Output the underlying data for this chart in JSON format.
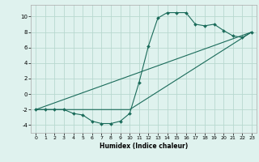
{
  "title": "",
  "xlabel": "Humidex (Indice chaleur)",
  "ylabel": "",
  "bg_color": "#dff2ee",
  "grid_color": "#b8d8d0",
  "line_color": "#1a6b5a",
  "xlim": [
    -0.5,
    23.5
  ],
  "ylim": [
    -5,
    11.5
  ],
  "xticks": [
    0,
    1,
    2,
    3,
    4,
    5,
    6,
    7,
    8,
    9,
    10,
    11,
    12,
    13,
    14,
    15,
    16,
    17,
    18,
    19,
    20,
    21,
    22,
    23
  ],
  "yticks": [
    -4,
    -2,
    0,
    2,
    4,
    6,
    8,
    10
  ],
  "line1_x": [
    0,
    1,
    2,
    3,
    4,
    5,
    6,
    7,
    8,
    9,
    10,
    11,
    12,
    13,
    14,
    15,
    16,
    17,
    18,
    19,
    20,
    21,
    22,
    23
  ],
  "line1_y": [
    -2,
    -2,
    -2,
    -2,
    -2.5,
    -2.7,
    -3.5,
    -3.8,
    -3.8,
    -3.5,
    -2.5,
    1.5,
    6.2,
    9.8,
    10.5,
    10.5,
    10.5,
    9.0,
    8.8,
    9.0,
    8.2,
    7.5,
    7.3,
    8.0
  ],
  "line2_x": [
    0,
    23
  ],
  "line2_y": [
    -2,
    8
  ],
  "line3_x": [
    0,
    10,
    23
  ],
  "line3_y": [
    -2,
    -2,
    8
  ]
}
